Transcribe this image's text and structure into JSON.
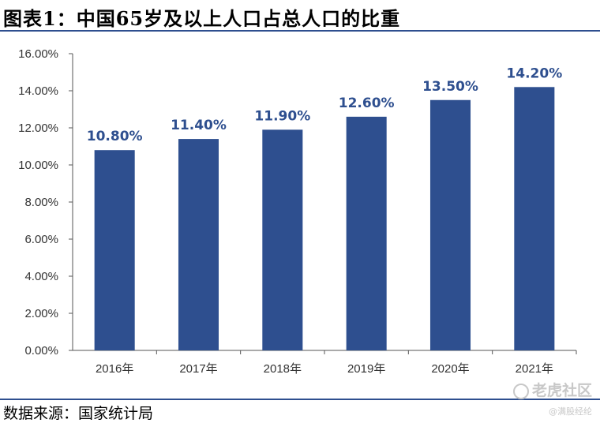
{
  "title": "图表1：中国65岁及以上人口占总人口的比重",
  "source": "数据来源：国家统计局",
  "watermark": {
    "main": "老虎社区",
    "sub": "@满股经纶"
  },
  "colors": {
    "bar": "#2E4F8F",
    "rule": "#2E4F8F",
    "axis": "#555555"
  },
  "chart_data": {
    "type": "bar",
    "title": "图表1：中国65岁及以上人口占总人口的比重",
    "xlabel": "",
    "ylabel": "",
    "categories": [
      "2016年",
      "2017年",
      "2018年",
      "2019年",
      "2020年",
      "2021年"
    ],
    "values": [
      10.8,
      11.4,
      11.9,
      12.6,
      13.5,
      14.2
    ],
    "data_labels": [
      "10.80%",
      "11.40%",
      "11.90%",
      "12.60%",
      "13.50%",
      "14.20%"
    ],
    "ylim": [
      0,
      16
    ],
    "yticks": [
      0,
      2,
      4,
      6,
      8,
      10,
      12,
      14,
      16
    ],
    "ytick_labels": [
      "0.00%",
      "2.00%",
      "4.00%",
      "6.00%",
      "8.00%",
      "10.00%",
      "12.00%",
      "14.00%",
      "16.00%"
    ],
    "grid": false,
    "legend": "none"
  }
}
